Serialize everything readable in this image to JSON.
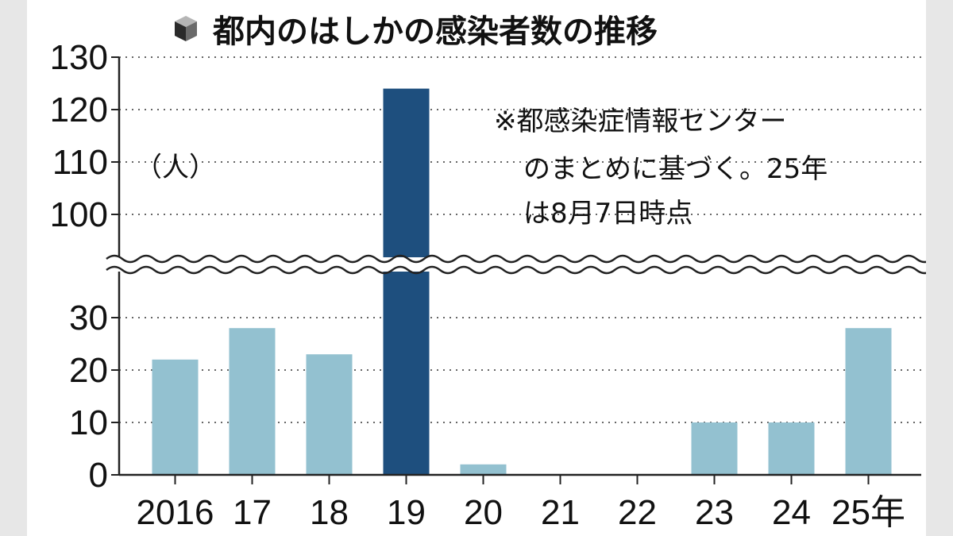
{
  "chart_data": {
    "type": "bar",
    "title": "都内のはしかの感染者数の推移",
    "unit_label": "（人）",
    "note_lines": [
      "※都感染症情報センター",
      "のまとめに基づく。25年",
      "は8月7日時点"
    ],
    "categories": [
      "2016",
      "17",
      "18",
      "19",
      "20",
      "21",
      "22",
      "23",
      "24",
      "25年"
    ],
    "values": [
      22,
      28,
      23,
      124,
      2,
      0,
      0,
      10,
      10,
      28
    ],
    "highlight_index": 3,
    "axis_break": [
      36,
      95
    ],
    "y_ticks_lower": [
      "0",
      "10",
      "20",
      "30"
    ],
    "y_ticks_upper": [
      "100",
      "110",
      "120",
      "130"
    ],
    "ylim": [
      0,
      130
    ],
    "grid": "dotted horizontal",
    "colors": {
      "bar": "#93c1d0",
      "highlight": "#1e4f7e",
      "axis": "#222222",
      "grid": "#666666"
    }
  }
}
